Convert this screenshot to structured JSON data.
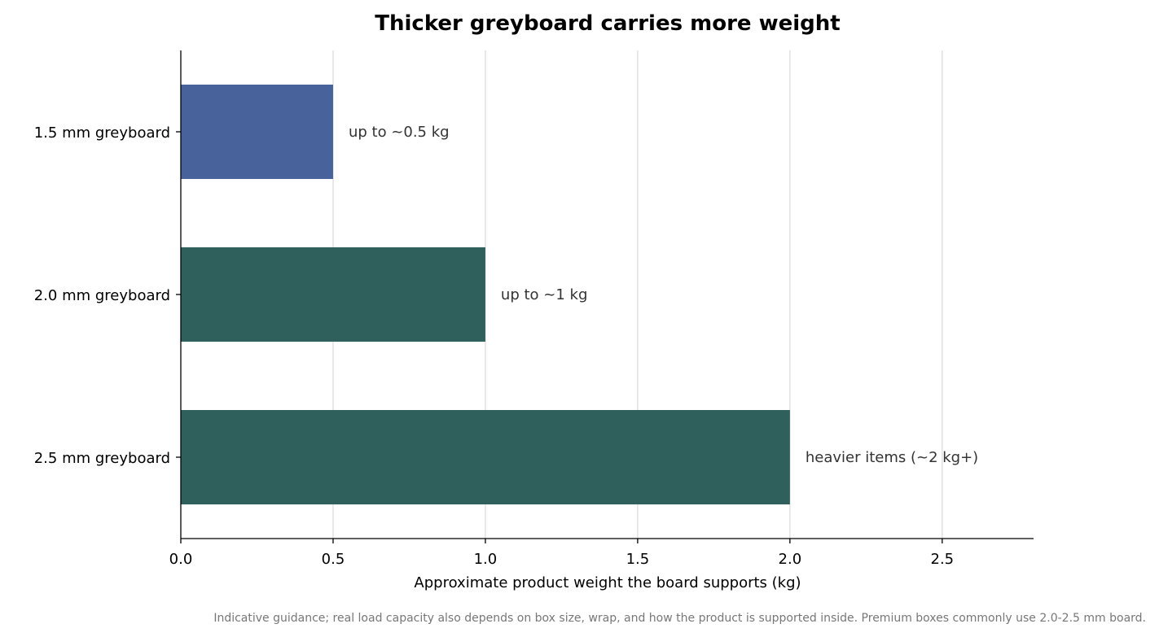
{
  "chart_data": {
    "type": "bar",
    "orientation": "horizontal",
    "title": "Thicker greyboard carries more weight",
    "xlabel": "Approximate product weight the board supports (kg)",
    "ylabel": "",
    "xlim": [
      0,
      2.8
    ],
    "xticks": [
      "0.0",
      "0.5",
      "1.0",
      "1.5",
      "2.0",
      "2.5"
    ],
    "grid": "vertical",
    "categories": [
      "1.5 mm greyboard",
      "2.0 mm greyboard",
      "2.5 mm greyboard"
    ],
    "values": [
      0.5,
      1.0,
      2.0
    ],
    "data_labels": [
      "up to ~0.5 kg",
      "up to ~1 kg",
      "heavier items (~2 kg+)"
    ],
    "bar_colors": [
      "#48639c",
      "#2f605c",
      "#2f605c"
    ]
  },
  "footnote": "Indicative guidance; real load capacity also depends on box size, wrap, and how the product is supported inside. Premium boxes commonly use 2.0-2.5 mm board."
}
